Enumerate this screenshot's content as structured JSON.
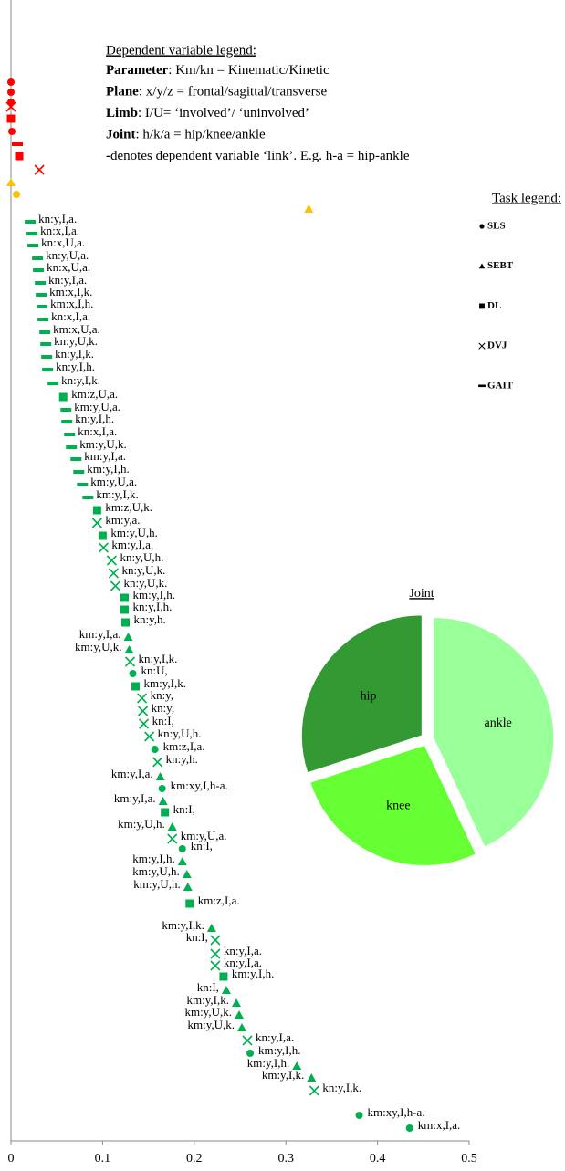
{
  "dependent_legend": {
    "title": "Dependent variable legend:",
    "lines": [
      {
        "term": "Parameter",
        "text": ": Km/kn = Kinematic/Kinetic"
      },
      {
        "term": "Plane",
        "text": ": x/y/z = frontal/sagittal/transverse"
      },
      {
        "term": "Limb",
        "text": ": I/U= ‘involved’/ ‘uninvolved’"
      },
      {
        "term": "Joint",
        "text": ": h/k/a = hip/knee/ankle"
      },
      {
        "term": "-",
        "text": "denotes dependent variable ‘link’. E.g. h-a = hip-ankle"
      }
    ]
  },
  "task_legend": {
    "title": "Task legend:",
    "items": [
      "SLS",
      "SEBT",
      "DL",
      "DVJ",
      "GAIT"
    ]
  },
  "chart_data": [
    {
      "type": "dotplot",
      "xlim": [
        0,
        0.5
      ],
      "xticks": [
        0,
        0.1,
        0.2,
        0.3,
        0.4,
        0.5
      ],
      "series": [
        {
          "color": "#ff0000",
          "points": [
            {
              "x": 0,
              "task": 0
            },
            {
              "x": 0,
              "task": 0
            },
            {
              "x": 0,
              "task": 0
            },
            {
              "x": 0,
              "task": 3
            },
            {
              "x": 0,
              "task": 2
            },
            {
              "x": 0.001,
              "task": 0
            },
            {
              "x": 0.007,
              "task": 4
            },
            {
              "x": 0.009,
              "task": 2
            },
            {
              "x": 0.031,
              "task": 3
            }
          ]
        },
        {
          "color": "#ffc000",
          "points": [
            {
              "x": 0,
              "task": 1
            },
            {
              "x": 0.006,
              "task": 0
            },
            {
              "x": 0.325,
              "task": 1
            }
          ]
        },
        {
          "color": "#00b050",
          "points": [
            {
              "x": 0.021,
              "task": 4,
              "label": "kn:y,I,a."
            },
            {
              "x": 0.023,
              "task": 4,
              "label": "kn:x,I,a."
            },
            {
              "x": 0.024,
              "task": 4,
              "label": "kn:x,U,a."
            },
            {
              "x": 0.029,
              "task": 4,
              "label": "kn:y,U,a."
            },
            {
              "x": 0.03,
              "task": 4,
              "label": "kn:x,U,a."
            },
            {
              "x": 0.032,
              "task": 4,
              "label": "kn:y,I,a."
            },
            {
              "x": 0.033,
              "task": 4,
              "label": "km:x,I,k."
            },
            {
              "x": 0.034,
              "task": 4,
              "label": "km:x,I,h."
            },
            {
              "x": 0.035,
              "task": 4,
              "label": "kn:x,I,a."
            },
            {
              "x": 0.037,
              "task": 4,
              "label": "km:x,U,a."
            },
            {
              "x": 0.038,
              "task": 4,
              "label": "kn:y,U,k."
            },
            {
              "x": 0.039,
              "task": 4,
              "label": "kn:y,I,k."
            },
            {
              "x": 0.04,
              "task": 4,
              "label": "kn:y,I,h."
            },
            {
              "x": 0.046,
              "task": 4,
              "label": "kn:y,I,k."
            },
            {
              "x": 0.057,
              "task": 2,
              "label": "km:z,U,a."
            },
            {
              "x": 0.06,
              "task": 4,
              "label": "km:y,U,a."
            },
            {
              "x": 0.061,
              "task": 4,
              "label": "kn:y,I,h."
            },
            {
              "x": 0.064,
              "task": 4,
              "label": "kn:x,I,a."
            },
            {
              "x": 0.066,
              "task": 4,
              "label": "km:y,U,k."
            },
            {
              "x": 0.071,
              "task": 4,
              "label": "km:y,I,a."
            },
            {
              "x": 0.074,
              "task": 4,
              "label": "km:y,I,h."
            },
            {
              "x": 0.078,
              "task": 4,
              "label": "km:y,U,a."
            },
            {
              "x": 0.084,
              "task": 4,
              "label": "km:y,I,k."
            },
            {
              "x": 0.094,
              "task": 2,
              "label": "km:z,U,k."
            },
            {
              "x": 0.094,
              "task": 3,
              "label": "km:y,a."
            },
            {
              "x": 0.1,
              "task": 2,
              "label": "km:y,U,h."
            },
            {
              "x": 0.101,
              "task": 3,
              "label": "km:y,I,a."
            },
            {
              "x": 0.11,
              "task": 3,
              "label": "kn:y,U,h."
            },
            {
              "x": 0.112,
              "task": 3,
              "label": "kn:y,U,k."
            },
            {
              "x": 0.114,
              "task": 3,
              "label": "kn:y,U,k."
            },
            {
              "x": 0.124,
              "task": 2,
              "label": "km:y,I,h."
            },
            {
              "x": 0.124,
              "task": 2,
              "label": "kn:y,I,h."
            },
            {
              "x": 0.125,
              "task": 2,
              "label": "kn:y,h."
            },
            {
              "x": 0.128,
              "task": 1,
              "label": "km:y,I,a."
            },
            {
              "x": 0.129,
              "task": 1,
              "label": "km:y,U,k."
            },
            {
              "x": 0.13,
              "task": 3,
              "label": "kn:y,I,k."
            },
            {
              "x": 0.133,
              "task": 0,
              "label": "kn:U,"
            },
            {
              "x": 0.136,
              "task": 2,
              "label": "km:y,I,k."
            },
            {
              "x": 0.143,
              "task": 3,
              "label": "kn:y,"
            },
            {
              "x": 0.144,
              "task": 3,
              "label": "kn:y,"
            },
            {
              "x": 0.145,
              "task": 3,
              "label": "kn:I,"
            },
            {
              "x": 0.151,
              "task": 3,
              "label": "kn:y,U,h."
            },
            {
              "x": 0.157,
              "task": 0,
              "label": "km:z,I,a."
            },
            {
              "x": 0.16,
              "task": 3,
              "label": "kn:y,h."
            },
            {
              "x": 0.163,
              "task": 1,
              "label": "km:y,I,a."
            },
            {
              "x": 0.165,
              "task": 0,
              "label": "km:xy,I,h-a."
            },
            {
              "x": 0.166,
              "task": 1,
              "label": "km:y,I,a."
            },
            {
              "x": 0.168,
              "task": 2,
              "label": "kn:I,"
            },
            {
              "x": 0.176,
              "task": 1,
              "label": "km:y,U,h."
            },
            {
              "x": 0.176,
              "task": 3,
              "label": "km:y,U,a."
            },
            {
              "x": 0.187,
              "task": 0,
              "label": "kn:I,"
            },
            {
              "x": 0.187,
              "task": 1,
              "label": "km:y,I,h."
            },
            {
              "x": 0.192,
              "task": 1,
              "label": "km:y,U,h."
            },
            {
              "x": 0.193,
              "task": 1,
              "label": "km:y,U,h."
            },
            {
              "x": 0.195,
              "task": 2,
              "label": "km:z,I,a."
            },
            {
              "x": 0.219,
              "task": 1,
              "label": "km:y,I,k."
            },
            {
              "x": 0.223,
              "task": 3,
              "label": "kn:I,"
            },
            {
              "x": 0.223,
              "task": 3,
              "label": "kn:y,I,a."
            },
            {
              "x": 0.223,
              "task": 3,
              "label": "kn:y,I,a."
            },
            {
              "x": 0.232,
              "task": 2,
              "label": "km:y,I,h."
            },
            {
              "x": 0.235,
              "task": 1,
              "label": "kn:I,"
            },
            {
              "x": 0.246,
              "task": 1,
              "label": "km:y,I,k."
            },
            {
              "x": 0.249,
              "task": 1,
              "label": "km:y,U,k."
            },
            {
              "x": 0.252,
              "task": 1,
              "label": "km:y,U,k."
            },
            {
              "x": 0.258,
              "task": 3,
              "label": "kn:y,I,a."
            },
            {
              "x": 0.261,
              "task": 0,
              "label": "km:y,I,h."
            },
            {
              "x": 0.312,
              "task": 1,
              "label": "km:y,I,h."
            },
            {
              "x": 0.328,
              "task": 1,
              "label": "km:y,I,k."
            },
            {
              "x": 0.331,
              "task": 3,
              "label": "kn:y,I,k."
            },
            {
              "x": 0.38,
              "task": 0,
              "label": "km:xy,I,h-a."
            },
            {
              "x": 0.435,
              "task": 0,
              "label": "km:x,I,a."
            }
          ]
        }
      ]
    },
    {
      "type": "pie",
      "title": "Joint",
      "categories": [
        "ankle",
        "knee",
        "hip"
      ],
      "values": [
        43,
        27,
        30
      ],
      "colors": [
        "#99ff99",
        "#66ff33",
        "#339933"
      ],
      "exploded": true
    }
  ]
}
